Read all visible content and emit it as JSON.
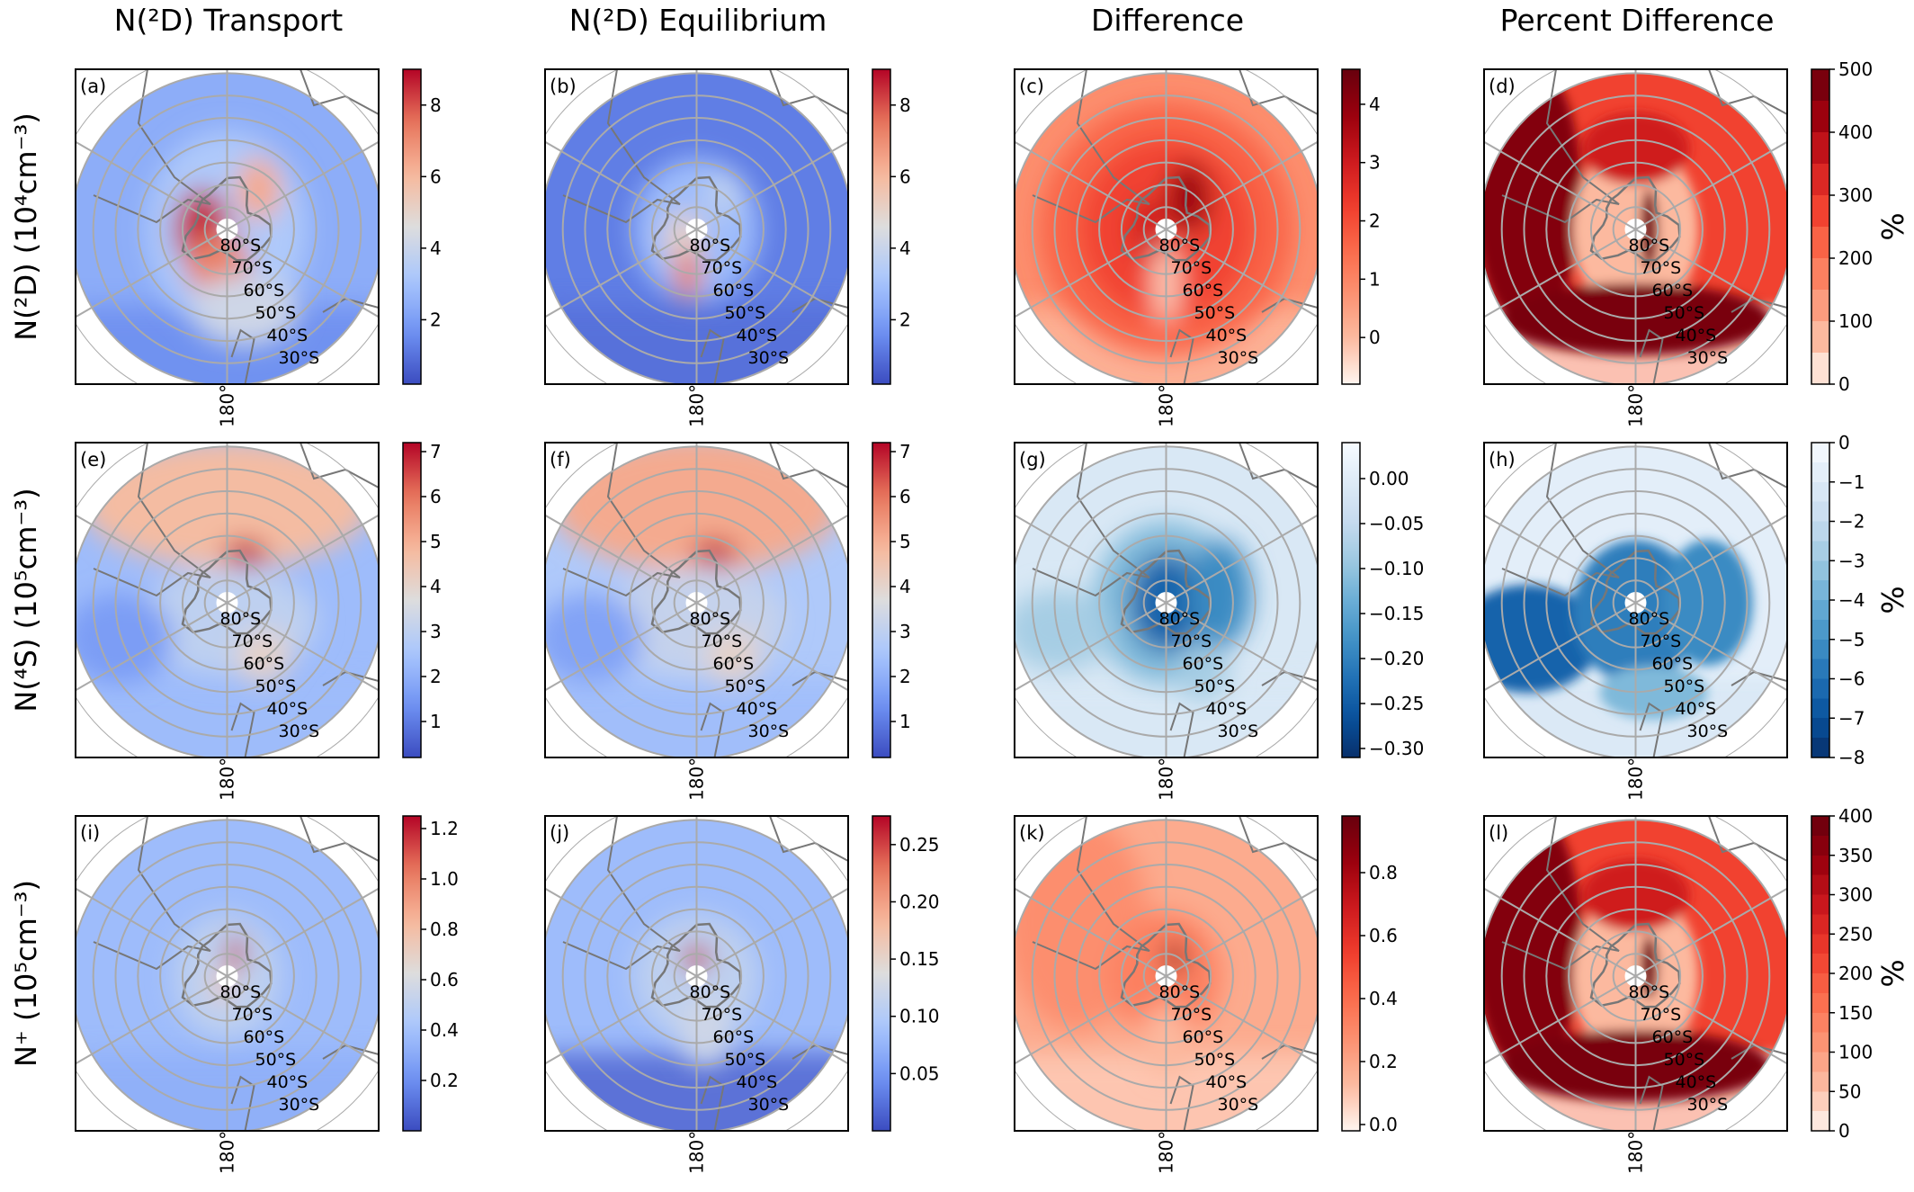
{
  "column_titles": [
    "N(²D) Transport",
    "N(²D) Equilibrium",
    "Difference",
    "Percent Difference"
  ],
  "row_labels": [
    "N(²D) (10⁴cm⁻³)",
    "N(⁴S) (10⁵cm⁻³)",
    "N⁺ (10⁵cm⁻³)"
  ],
  "colormaps": {
    "coolwarm": [
      "#3b4cc0",
      "#6f92f3",
      "#aac7fd",
      "#dddddd",
      "#f7b89c",
      "#e7745b",
      "#b40426"
    ],
    "reds": [
      "#fff5f0",
      "#fcbba1",
      "#fc9272",
      "#fb6a4a",
      "#ef3b2c",
      "#cb181d",
      "#99000d",
      "#67000d"
    ],
    "blues_r": [
      "#08306b",
      "#08519c",
      "#2171b5",
      "#4292c6",
      "#6baed6",
      "#9ecae1",
      "#c6dbef",
      "#deebf7",
      "#f7fbff"
    ]
  },
  "chart_data": [
    {
      "type": "heatmap",
      "panel": "(a)",
      "projection": "south-polar-stereographic",
      "colormap": "coolwarm",
      "range": [
        0.2,
        9.0
      ],
      "ticks": [
        "2",
        "4",
        "6",
        "8"
      ],
      "tick_values": [
        2,
        4,
        6,
        8
      ],
      "unit_label": "",
      "lat_labels": [
        "80°S",
        "70°S",
        "60°S",
        "50°S",
        "40°S",
        "30°S"
      ],
      "lon_label": "180°"
    },
    {
      "type": "heatmap",
      "panel": "(b)",
      "projection": "south-polar-stereographic",
      "colormap": "coolwarm",
      "range": [
        0.2,
        9.0
      ],
      "ticks": [
        "2",
        "4",
        "6",
        "8"
      ],
      "tick_values": [
        2,
        4,
        6,
        8
      ],
      "unit_label": "",
      "lat_labels": [
        "80°S",
        "70°S",
        "60°S",
        "50°S",
        "40°S",
        "30°S"
      ],
      "lon_label": "180°"
    },
    {
      "type": "heatmap",
      "panel": "(c)",
      "projection": "south-polar-stereographic",
      "colormap": "reds",
      "range": [
        -0.8,
        4.6
      ],
      "ticks": [
        "0",
        "1",
        "2",
        "3",
        "4"
      ],
      "tick_values": [
        0,
        1,
        2,
        3,
        4
      ],
      "unit_label": "",
      "lat_labels": [
        "80°S",
        "70°S",
        "60°S",
        "50°S",
        "40°S",
        "30°S"
      ],
      "lon_label": "180°"
    },
    {
      "type": "heatmap",
      "panel": "(d)",
      "projection": "south-polar-stereographic",
      "colormap": "reds",
      "discrete": true,
      "range": [
        0,
        500
      ],
      "ticks": [
        "0",
        "100",
        "200",
        "300",
        "400",
        "500"
      ],
      "tick_values": [
        0,
        100,
        200,
        300,
        400,
        500
      ],
      "unit_label": "%",
      "lat_labels": [
        "80°S",
        "70°S",
        "60°S",
        "50°S",
        "40°S",
        "30°S"
      ],
      "lon_label": "180°"
    },
    {
      "type": "heatmap",
      "panel": "(e)",
      "projection": "south-polar-stereographic",
      "colormap": "coolwarm",
      "range": [
        0.2,
        7.2
      ],
      "ticks": [
        "1",
        "2",
        "3",
        "4",
        "5",
        "6",
        "7"
      ],
      "tick_values": [
        1,
        2,
        3,
        4,
        5,
        6,
        7
      ],
      "unit_label": "",
      "lat_labels": [
        "80°S",
        "70°S",
        "60°S",
        "50°S",
        "40°S",
        "30°S"
      ],
      "lon_label": "180°"
    },
    {
      "type": "heatmap",
      "panel": "(f)",
      "projection": "south-polar-stereographic",
      "colormap": "coolwarm",
      "range": [
        0.2,
        7.2
      ],
      "ticks": [
        "1",
        "2",
        "3",
        "4",
        "5",
        "6",
        "7"
      ],
      "tick_values": [
        1,
        2,
        3,
        4,
        5,
        6,
        7
      ],
      "unit_label": "",
      "lat_labels": [
        "80°S",
        "70°S",
        "60°S",
        "50°S",
        "40°S",
        "30°S"
      ],
      "lon_label": "180°"
    },
    {
      "type": "heatmap",
      "panel": "(g)",
      "projection": "south-polar-stereographic",
      "colormap": "blues_r",
      "range": [
        -0.31,
        0.04
      ],
      "ticks": [
        "0.00",
        "−0.05",
        "−0.10",
        "−0.15",
        "−0.20",
        "−0.25",
        "−0.30"
      ],
      "tick_values": [
        0,
        -0.05,
        -0.1,
        -0.15,
        -0.2,
        -0.25,
        -0.3
      ],
      "unit_label": "",
      "lat_labels": [
        "80°S",
        "70°S",
        "60°S",
        "50°S",
        "40°S",
        "30°S"
      ],
      "lon_label": "180°"
    },
    {
      "type": "heatmap",
      "panel": "(h)",
      "projection": "south-polar-stereographic",
      "colormap": "blues_r",
      "discrete": true,
      "range": [
        -8,
        0
      ],
      "ticks": [
        "0",
        "−1",
        "−2",
        "−3",
        "−4",
        "−5",
        "−6",
        "−7",
        "−8"
      ],
      "tick_values": [
        0,
        -1,
        -2,
        -3,
        -4,
        -5,
        -6,
        -7,
        -8
      ],
      "unit_label": "%",
      "lat_labels": [
        "80°S",
        "70°S",
        "60°S",
        "50°S",
        "40°S",
        "30°S"
      ],
      "lon_label": "180°"
    },
    {
      "type": "heatmap",
      "panel": "(i)",
      "projection": "south-polar-stereographic",
      "colormap": "coolwarm",
      "range": [
        0.0,
        1.25
      ],
      "ticks": [
        "0.2",
        "0.4",
        "0.6",
        "0.8",
        "1.0",
        "1.2"
      ],
      "tick_values": [
        0.2,
        0.4,
        0.6,
        0.8,
        1.0,
        1.2
      ],
      "unit_label": "",
      "lat_labels": [
        "80°S",
        "70°S",
        "60°S",
        "50°S",
        "40°S",
        "30°S"
      ],
      "lon_label": "180°"
    },
    {
      "type": "heatmap",
      "panel": "(j)",
      "projection": "south-polar-stereographic",
      "colormap": "coolwarm",
      "range": [
        0.0,
        0.275
      ],
      "ticks": [
        "0.05",
        "0.10",
        "0.15",
        "0.20",
        "0.25"
      ],
      "tick_values": [
        0.05,
        0.1,
        0.15,
        0.2,
        0.25
      ],
      "unit_label": "",
      "lat_labels": [
        "80°S",
        "70°S",
        "60°S",
        "50°S",
        "40°S",
        "30°S"
      ],
      "lon_label": "180°"
    },
    {
      "type": "heatmap",
      "panel": "(k)",
      "projection": "south-polar-stereographic",
      "colormap": "reds",
      "range": [
        -0.02,
        0.98
      ],
      "ticks": [
        "0.0",
        "0.2",
        "0.4",
        "0.6",
        "0.8"
      ],
      "tick_values": [
        0,
        0.2,
        0.4,
        0.6,
        0.8
      ],
      "unit_label": "",
      "lat_labels": [
        "80°S",
        "70°S",
        "60°S",
        "50°S",
        "40°S",
        "30°S"
      ],
      "lon_label": "180°"
    },
    {
      "type": "heatmap",
      "panel": "(l)",
      "projection": "south-polar-stereographic",
      "colormap": "reds",
      "discrete": true,
      "range": [
        0,
        400
      ],
      "ticks": [
        "0",
        "50",
        "100",
        "150",
        "200",
        "250",
        "300",
        "350",
        "400"
      ],
      "tick_values": [
        0,
        50,
        100,
        150,
        200,
        250,
        300,
        350,
        400
      ],
      "unit_label": "%",
      "lat_labels": [
        "80°S",
        "70°S",
        "60°S",
        "50°S",
        "40°S",
        "30°S"
      ],
      "lon_label": "180°"
    }
  ]
}
